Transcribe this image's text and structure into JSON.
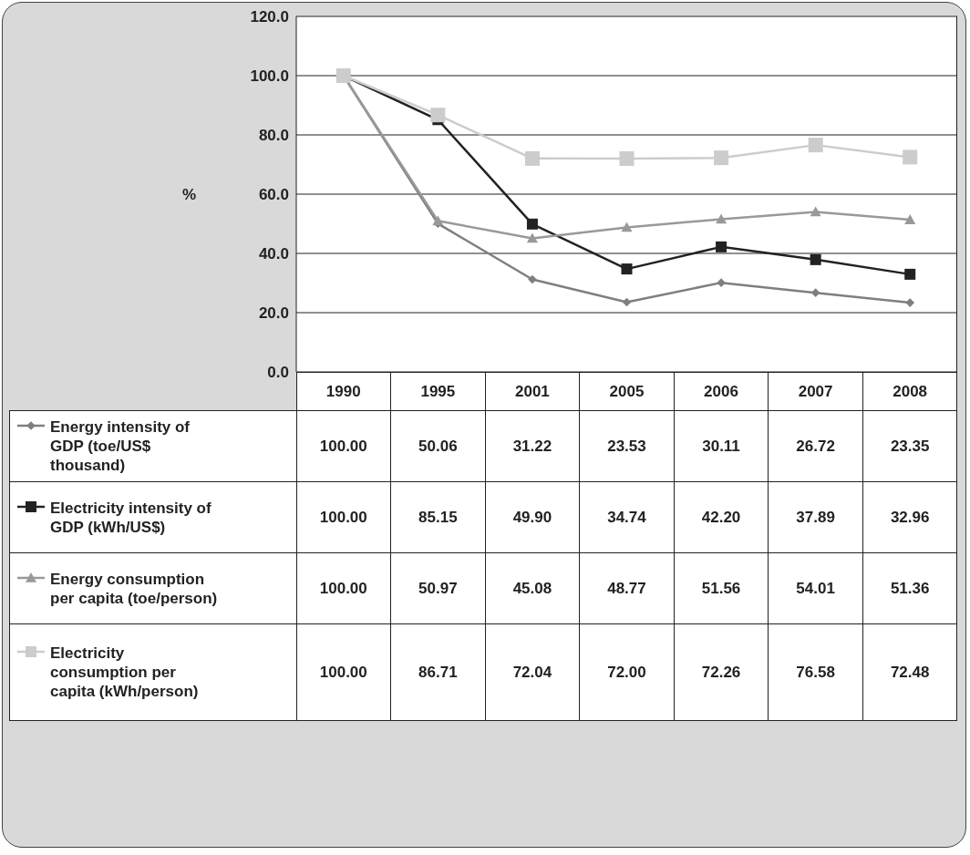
{
  "chart_data": {
    "type": "line",
    "ylabel": "%",
    "categories": [
      "1990",
      "1995",
      "2001",
      "2005",
      "2006",
      "2007",
      "2008"
    ],
    "ylim": [
      0,
      120
    ],
    "yticks": [
      {
        "value": 0,
        "label": "0.0"
      },
      {
        "value": 20,
        "label": "20.0"
      },
      {
        "value": 40,
        "label": "40.0"
      },
      {
        "value": 60,
        "label": "60.0"
      },
      {
        "value": 80,
        "label": "80.0"
      },
      {
        "value": 100,
        "label": "100.0"
      },
      {
        "value": 120,
        "label": "120.0"
      }
    ],
    "grid": "y",
    "legend": "bottom",
    "line_style": "solid",
    "series": [
      {
        "name": "Energy intensity of GDP (toe/US$ thousand)",
        "color": "#7f7f7f",
        "marker": "diamond",
        "values": [
          100.0,
          50.06,
          31.22,
          23.53,
          30.11,
          26.72,
          23.35
        ],
        "value_labels": [
          "100.00",
          "50.06",
          "31.22",
          "23.53",
          "30.11",
          "26.72",
          "23.35"
        ]
      },
      {
        "name": "Electricity intensity of GDP (kWh/US$)",
        "color": "#222222",
        "marker": "square",
        "values": [
          100.0,
          85.15,
          49.9,
          34.74,
          42.2,
          37.89,
          32.96
        ],
        "value_labels": [
          "100.00",
          "85.15",
          "49.90",
          "34.74",
          "42.20",
          "37.89",
          "32.96"
        ]
      },
      {
        "name": "Energy consumption per capita (toe/person)",
        "color": "#999999",
        "marker": "triangle",
        "values": [
          100.0,
          50.97,
          45.08,
          48.77,
          51.56,
          54.01,
          51.36
        ],
        "value_labels": [
          "100.00",
          "50.97",
          "45.08",
          "48.77",
          "51.56",
          "54.01",
          "51.36"
        ]
      },
      {
        "name": "Electricity consumption per capita (kWh/person)",
        "color": "#cccccc",
        "marker": "square",
        "values": [
          100.0,
          86.71,
          72.04,
          72.0,
          72.26,
          76.58,
          72.48
        ],
        "value_labels": [
          "100.00",
          "86.71",
          "72.04",
          "72.00",
          "72.26",
          "76.58",
          "72.48"
        ]
      }
    ]
  }
}
